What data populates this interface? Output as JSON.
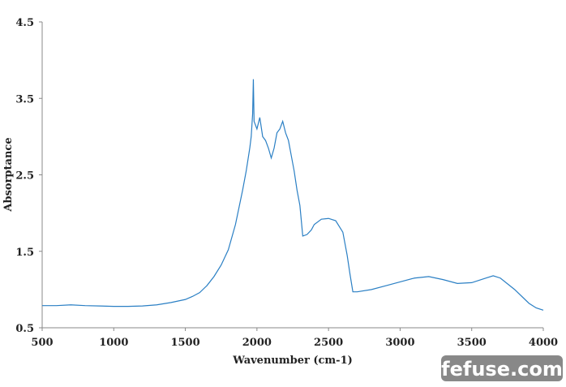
{
  "chart_data": {
    "type": "line",
    "x_label": "Wavenumber (cm-1)",
    "y_label": "Absorptance",
    "x": [
      500,
      600,
      700,
      800,
      900,
      1000,
      1100,
      1200,
      1300,
      1400,
      1500,
      1550,
      1600,
      1650,
      1700,
      1750,
      1800,
      1850,
      1900,
      1925,
      1950,
      1960,
      1970,
      1975,
      1980,
      2000,
      2020,
      2040,
      2060,
      2080,
      2100,
      2120,
      2140,
      2160,
      2180,
      2200,
      2220,
      2240,
      2260,
      2280,
      2300,
      2320,
      2350,
      2380,
      2400,
      2450,
      2500,
      2550,
      2600,
      2630,
      2650,
      2670,
      2700,
      2800,
      2900,
      3000,
      3100,
      3200,
      3300,
      3400,
      3500,
      3600,
      3650,
      3700,
      3800,
      3900,
      3950,
      4000
    ],
    "series": [
      {
        "name": "Absorptance",
        "color": "#2a7fc4",
        "values": [
          0.79,
          0.79,
          0.8,
          0.79,
          0.785,
          0.78,
          0.78,
          0.785,
          0.8,
          0.83,
          0.87,
          0.91,
          0.96,
          1.05,
          1.17,
          1.32,
          1.52,
          1.85,
          2.3,
          2.55,
          2.85,
          3.0,
          3.3,
          3.75,
          3.2,
          3.1,
          3.25,
          3.0,
          2.95,
          2.85,
          2.72,
          2.85,
          3.05,
          3.1,
          3.2,
          3.05,
          2.95,
          2.75,
          2.55,
          2.3,
          2.1,
          1.7,
          1.72,
          1.78,
          1.85,
          1.92,
          1.93,
          1.9,
          1.75,
          1.45,
          1.2,
          0.97,
          0.97,
          1.0,
          1.05,
          1.1,
          1.15,
          1.17,
          1.13,
          1.08,
          1.09,
          1.15,
          1.18,
          1.15,
          1.0,
          0.82,
          0.76,
          0.73
        ]
      }
    ],
    "xlim": [
      500,
      4000
    ],
    "xticks": [
      500,
      1000,
      1500,
      2000,
      2500,
      3000,
      3500,
      4000
    ],
    "ylim": [
      0.5,
      4.5
    ],
    "yticks": [
      0.5,
      1.5,
      2.5,
      3.5,
      4.5
    ],
    "watermark": "fefuse.com"
  }
}
